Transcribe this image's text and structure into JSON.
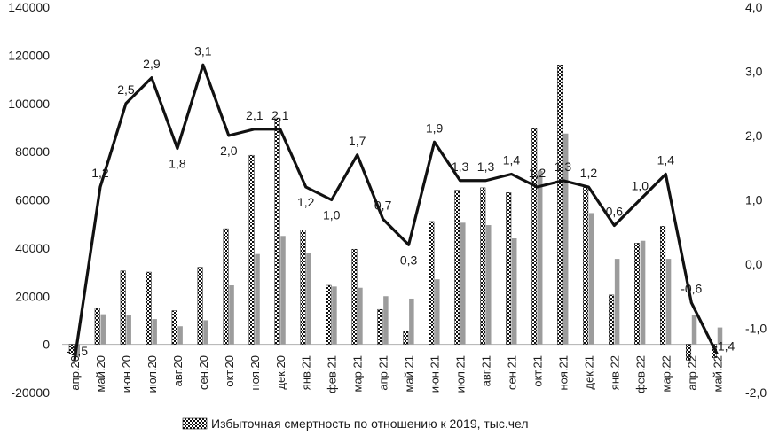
{
  "chart_data": {
    "type": "bar",
    "title": "",
    "categories": [
      "апр.20",
      "май.20",
      "июн.20",
      "июл.20",
      "авг.20",
      "сен.20",
      "окт.20",
      "ноя.20",
      "дек.20",
      "янв.21",
      "фев.21",
      "мар.21",
      "апр.21",
      "май.21",
      "июн.21",
      "июл.21",
      "авг.21",
      "сен.21",
      "окт.21",
      "ноя.21",
      "дек.21",
      "янв.22",
      "фев.22",
      "мар.22",
      "апр.22",
      "май.22"
    ],
    "series": [
      {
        "name": "Избыточная смертность по отношению к 2019, тыс.чел",
        "kind": "bar",
        "style": "checkered",
        "axis": "left",
        "values": [
          -4000,
          15000,
          30500,
          30000,
          14000,
          32000,
          48000,
          78500,
          94000,
          47500,
          24500,
          39500,
          14500,
          5500,
          51000,
          64000,
          65000,
          63000,
          89500,
          116000,
          65500,
          20500,
          42000,
          49000,
          -6500,
          -5500
        ]
      },
      {
        "name": "",
        "kind": "bar",
        "style": "gray",
        "axis": "left",
        "values": [
          -5000,
          12500,
          12000,
          10500,
          7500,
          10000,
          24500,
          37500,
          45000,
          38000,
          24000,
          23500,
          20000,
          19000,
          27000,
          50500,
          49500,
          44000,
          72000,
          87500,
          54500,
          35500,
          43000,
          35500,
          12000,
          7000
        ]
      },
      {
        "name": "",
        "kind": "line",
        "axis": "right",
        "values": [
          -1.5,
          1.2,
          2.5,
          2.9,
          1.8,
          3.1,
          2.0,
          2.1,
          2.1,
          1.2,
          1.0,
          1.7,
          0.7,
          0.3,
          1.9,
          1.3,
          1.3,
          1.4,
          1.2,
          1.3,
          1.2,
          0.6,
          1.0,
          1.4,
          -0.6,
          -1.4
        ]
      }
    ],
    "line_labels": [
      "-1,5",
      "1,2",
      "2,5",
      "2,9",
      "1,8",
      "3,1",
      "2,0",
      "2,1",
      "2,1",
      "1,2",
      "1,0",
      "1,7",
      "0,7",
      "0,3",
      "1,9",
      "1,3",
      "1,3",
      "1,4",
      "1,2",
      "1,3",
      "1,2",
      "0,6",
      "1,0",
      "1,4",
      "-0,6",
      "-1,4"
    ],
    "y_left": {
      "min": -20000,
      "max": 140000,
      "ticks": [
        "-20000",
        "0",
        "20000",
        "40000",
        "60000",
        "80000",
        "100000",
        "120000",
        "140000"
      ]
    },
    "y_right": {
      "min": -2.0,
      "max": 4.0,
      "ticks": [
        "-2,0",
        "-1,0",
        "0,0",
        "1,0",
        "2,0",
        "3,0",
        "4,0"
      ]
    },
    "legend": {
      "position": "bottom-center",
      "label": "Избыточная смертность по отношению к 2019, тыс.чел"
    },
    "grid": false,
    "colors": {
      "line": "#111111",
      "gray_bar": "#9c9c9c",
      "check_dark": "#111111",
      "check_light": "#ffffff",
      "text": "#1a1a1a"
    }
  }
}
